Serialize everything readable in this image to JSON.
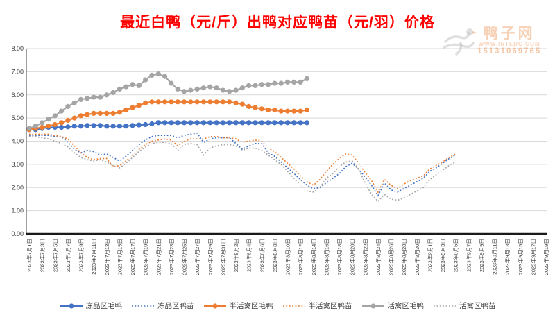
{
  "title": "最近白鸭（元/斤）出鸭对应鸭苗（元/羽）价格",
  "watermark": {
    "brand": "鸭子网",
    "url": "WWW.INTEDC.COM",
    "phone": "15131069765"
  },
  "colors": {
    "title": "#FF0000",
    "blue": "#4472C4",
    "orange": "#ED7D31",
    "gray": "#A5A5A5",
    "grid": "#D9D9D9",
    "axis_line": "#1A1A1A",
    "y_axis_line": "#404040",
    "tick_text": "#404040",
    "watermark_text": "#EE9A5E"
  },
  "chart_data": {
    "type": "line",
    "title": "最近白鸭（元/斤）出鸭对应鸭苗（元/羽）价格",
    "xlabel": "",
    "ylabel": "",
    "ylim": [
      0,
      8
    ],
    "grid": true,
    "legend_position": "bottom",
    "ytick_labels": [
      "0.00",
      "1.00",
      "2.00",
      "3.00",
      "4.00",
      "5.00",
      "6.00",
      "7.00",
      "8.00"
    ],
    "x_start_date": "2023年7月1日",
    "x_interval_days_between_points": 1,
    "x_days_total": 81,
    "x_tick_every_n_days": 2,
    "x_tick_labels": [
      "2023年7月1日",
      "2023年7月3日",
      "2023年7月5日",
      "2023年7月7日",
      "2023年7月9日",
      "2023年7月11日",
      "2023年7月13日",
      "2023年7月15日",
      "2023年7月17日",
      "2023年7月19日",
      "2023年7月21日",
      "2023年7月23日",
      "2023年7月25日",
      "2023年7月27日",
      "2023年7月29日",
      "2023年7月31日",
      "2023年8月2日",
      "2023年8月4日",
      "2023年8月6日",
      "2023年8月8日",
      "2023年8月10日",
      "2023年8月12日",
      "2023年8月14日",
      "2023年8月16日",
      "2023年8月18日",
      "2023年8月20日",
      "2023年8月22日",
      "2023年8月24日",
      "2023年8月26日",
      "2023年8月28日",
      "2023年8月30日",
      "2023年9月1日",
      "2023年9月3日",
      "2023年9月5日",
      "2023年9月7日",
      "2023年9月9日",
      "2023年9月11日",
      "2023年9月13日",
      "2023年9月15日",
      "2023年9月17日",
      "2023年9月19日"
    ],
    "series": [
      {
        "name": "冻品区毛鸭",
        "color": "#4472C4",
        "style": "solid",
        "marker": true,
        "values": [
          4.5,
          4.5,
          4.55,
          4.6,
          4.6,
          4.6,
          4.62,
          4.65,
          4.65,
          4.68,
          4.68,
          4.68,
          4.65,
          4.65,
          4.65,
          4.65,
          4.68,
          4.7,
          4.72,
          4.75,
          4.8,
          4.8,
          4.8,
          4.8,
          4.8,
          4.8,
          4.8,
          4.8,
          4.8,
          4.8,
          4.8,
          4.8,
          4.8,
          4.8,
          4.8,
          4.8,
          4.8,
          4.8,
          4.8,
          4.8,
          4.8,
          4.8,
          4.8,
          4.8
        ]
      },
      {
        "name": "冻品区鸭苗",
        "color": "#4472C4",
        "style": "dotted",
        "marker": false,
        "values": [
          4.25,
          4.25,
          4.25,
          4.25,
          4.2,
          4.2,
          3.95,
          3.65,
          3.5,
          3.6,
          3.55,
          3.4,
          3.45,
          3.3,
          3.15,
          3.35,
          3.6,
          3.85,
          4.05,
          4.2,
          4.25,
          4.25,
          4.25,
          4.15,
          4.25,
          4.3,
          4.35,
          3.95,
          4.1,
          4.15,
          4.15,
          4.15,
          3.9,
          3.65,
          3.8,
          3.9,
          3.9,
          3.5,
          3.35,
          3.1,
          2.85,
          2.6,
          2.35,
          2.1,
          1.95,
          2.0,
          2.2,
          2.4,
          2.6,
          2.9,
          3.05,
          2.8,
          2.45,
          2.1,
          1.65,
          2.2,
          1.9,
          1.8,
          1.95,
          2.1,
          2.25,
          2.4,
          2.7,
          2.85,
          3.05,
          3.25,
          3.4
        ]
      },
      {
        "name": "半活禽区毛鸭",
        "color": "#ED7D31",
        "style": "solid",
        "marker": true,
        "values": [
          4.5,
          4.55,
          4.6,
          4.65,
          4.72,
          4.8,
          4.9,
          5.0,
          5.1,
          5.15,
          5.2,
          5.2,
          5.2,
          5.2,
          5.25,
          5.35,
          5.45,
          5.55,
          5.65,
          5.7,
          5.7,
          5.7,
          5.7,
          5.7,
          5.7,
          5.7,
          5.7,
          5.7,
          5.7,
          5.7,
          5.7,
          5.7,
          5.65,
          5.6,
          5.5,
          5.45,
          5.4,
          5.35,
          5.35,
          5.3,
          5.3,
          5.3,
          5.3,
          5.35
        ]
      },
      {
        "name": "半活禽区鸭苗",
        "color": "#ED7D31",
        "style": "dotted",
        "marker": false,
        "values": [
          4.3,
          4.3,
          4.3,
          4.3,
          4.25,
          4.2,
          4.1,
          3.8,
          3.5,
          3.3,
          3.2,
          3.25,
          3.25,
          2.9,
          2.95,
          3.15,
          3.4,
          3.65,
          3.85,
          4.0,
          4.05,
          4.1,
          4.05,
          3.8,
          4.0,
          4.1,
          4.1,
          4.1,
          4.2,
          4.2,
          4.15,
          4.15,
          4.1,
          3.95,
          4.0,
          4.05,
          4.0,
          3.7,
          3.55,
          3.3,
          3.05,
          2.8,
          2.5,
          2.25,
          2.1,
          2.35,
          2.7,
          3.0,
          3.25,
          3.45,
          3.4,
          3.05,
          2.65,
          2.3,
          1.8,
          2.35,
          2.1,
          1.95,
          2.15,
          2.3,
          2.4,
          2.5,
          2.8,
          2.95,
          3.1,
          3.3,
          3.45
        ]
      },
      {
        "name": "活禽区毛鸭",
        "color": "#A5A5A5",
        "style": "solid",
        "marker": true,
        "values": [
          4.55,
          4.65,
          4.8,
          4.95,
          5.1,
          5.3,
          5.5,
          5.65,
          5.8,
          5.85,
          5.9,
          5.9,
          6.0,
          6.1,
          6.25,
          6.35,
          6.45,
          6.4,
          6.65,
          6.85,
          6.9,
          6.8,
          6.5,
          6.25,
          6.15,
          6.2,
          6.25,
          6.3,
          6.35,
          6.3,
          6.2,
          6.15,
          6.2,
          6.3,
          6.4,
          6.4,
          6.45,
          6.45,
          6.5,
          6.5,
          6.55,
          6.55,
          6.55,
          6.7
        ]
      },
      {
        "name": "活禽区鸭苗",
        "color": "#A5A5A5",
        "style": "dotted",
        "marker": false,
        "values": [
          4.2,
          4.2,
          4.15,
          4.1,
          4.0,
          3.9,
          3.75,
          3.5,
          3.3,
          3.2,
          3.15,
          3.2,
          3.1,
          2.95,
          2.85,
          3.05,
          3.3,
          3.55,
          3.75,
          3.9,
          3.95,
          3.95,
          3.9,
          3.6,
          3.85,
          3.9,
          3.85,
          3.4,
          3.7,
          3.8,
          3.85,
          3.85,
          3.8,
          3.6,
          3.7,
          3.7,
          3.6,
          3.4,
          3.2,
          3.0,
          2.7,
          2.4,
          2.1,
          1.85,
          1.8,
          2.0,
          2.4,
          2.6,
          2.9,
          3.1,
          3.15,
          2.8,
          2.2,
          1.7,
          1.4,
          1.7,
          1.5,
          1.45,
          1.55,
          1.7,
          1.85,
          2.0,
          2.35,
          2.55,
          2.75,
          2.95,
          3.1
        ]
      }
    ]
  }
}
